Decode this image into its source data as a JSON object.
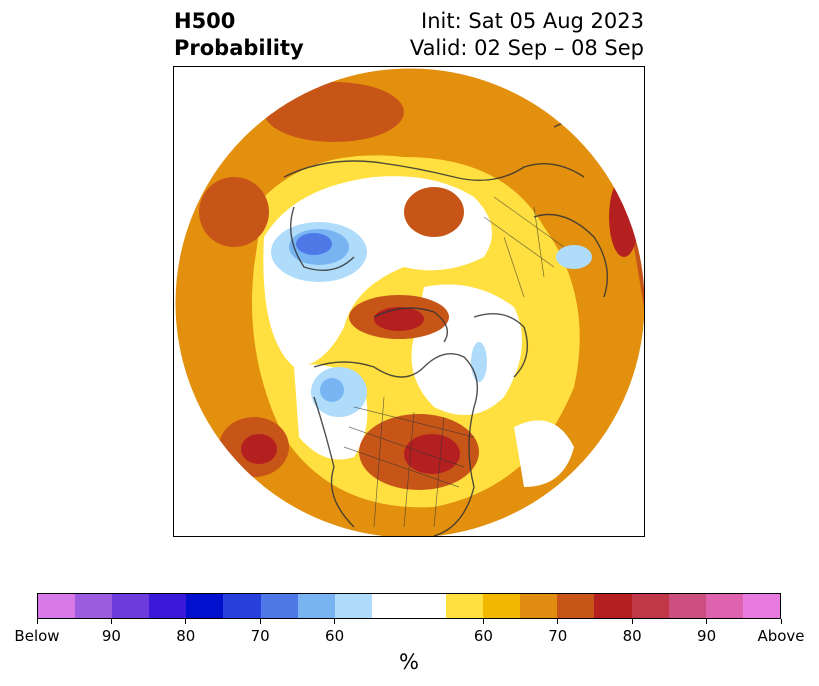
{
  "title": {
    "left_line1": "H500",
    "left_line2": "Probability",
    "right_line1": "Init: Sat 05 Aug 2023",
    "right_line2": "Valid: 02 Sep – 08 Sep"
  },
  "map": {
    "projection": "north-polar-stereographic",
    "region": "Northern Hemisphere",
    "background_color": "#ffffff",
    "coastline_color": "#333333"
  },
  "colorbar": {
    "unit_label": "%",
    "below_colors": [
      "#d77ae8",
      "#9b5ce0",
      "#6e3bdc",
      "#3a1ad8",
      "#0010cc",
      "#2840dc",
      "#4d78e6",
      "#78b4f2",
      "#aedcfa"
    ],
    "neutral_color": "#ffffff",
    "above_colors": [
      "#ffe040",
      "#f2b800",
      "#e08c10",
      "#c85518",
      "#b42020",
      "#c03848",
      "#cc4e7e",
      "#de62ae",
      "#e87ae0"
    ],
    "tick_labels": [
      "Below",
      "90",
      "80",
      "70",
      "60",
      "60",
      "70",
      "80",
      "90",
      "Above"
    ]
  }
}
